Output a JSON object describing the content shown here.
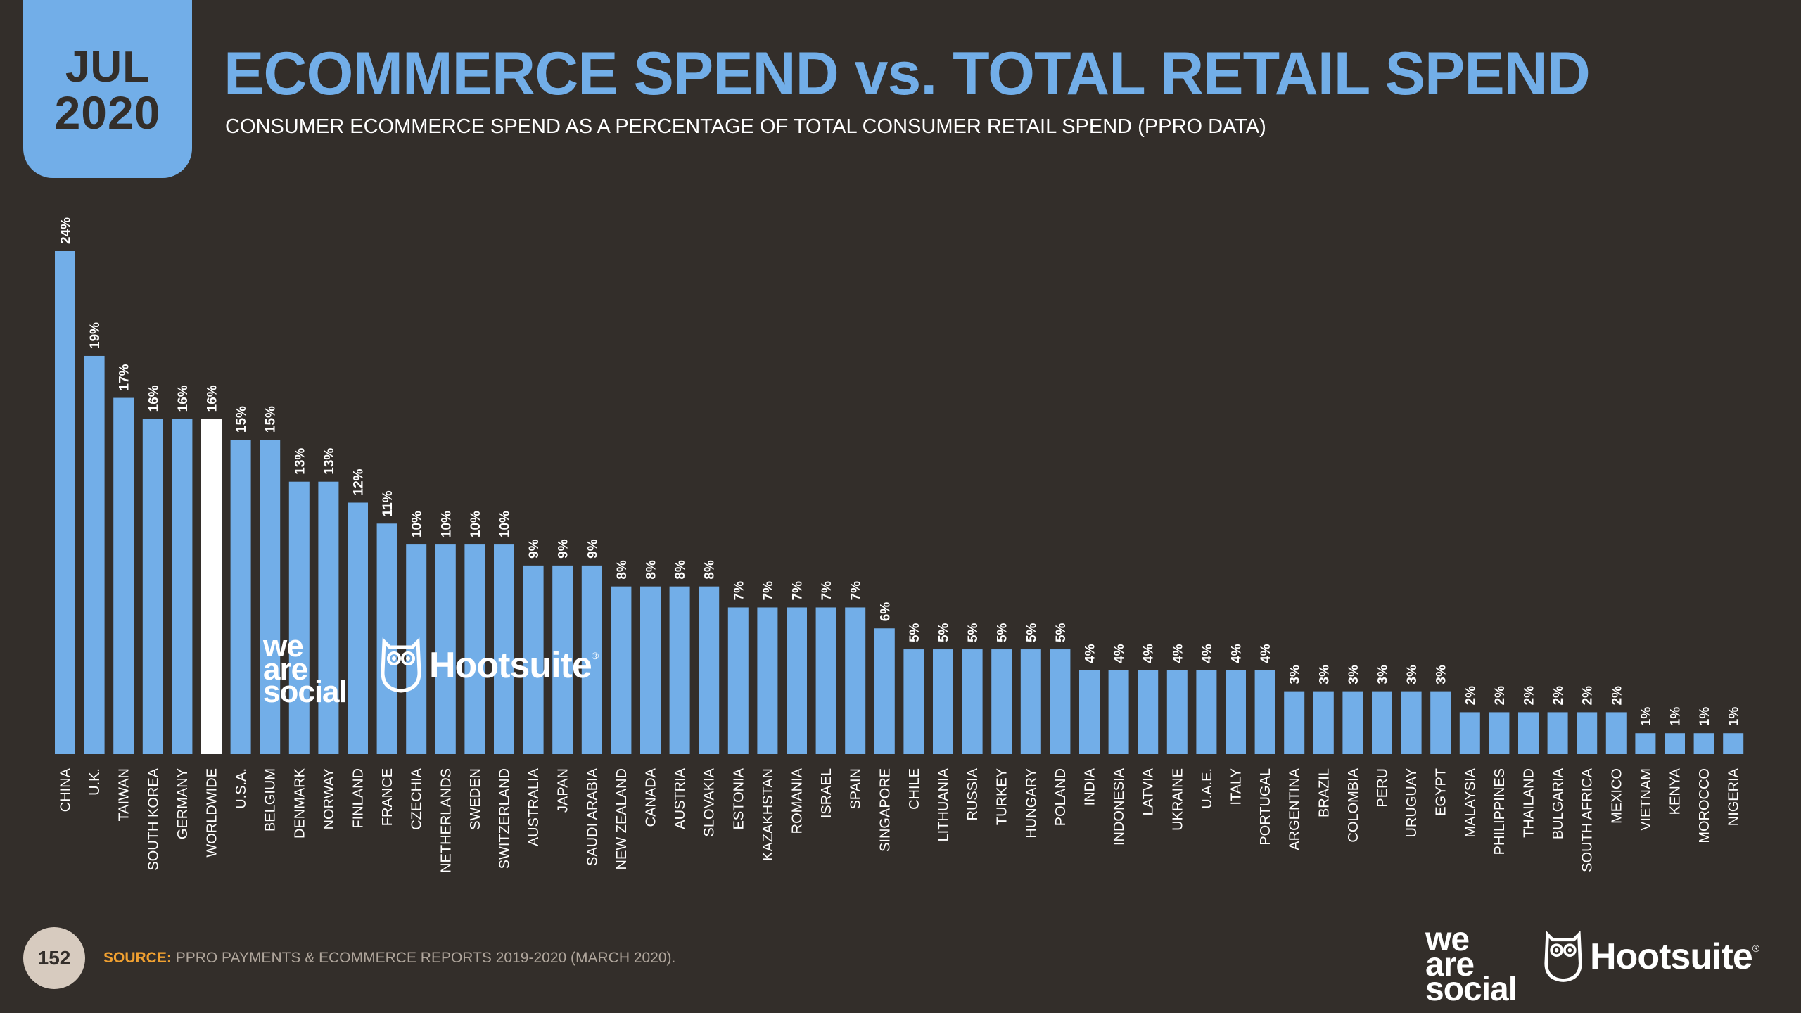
{
  "header": {
    "month": "JUL",
    "year": "2020",
    "title": "ECOMMERCE SPEND vs. TOTAL RETAIL SPEND",
    "subtitle": "CONSUMER ECOMMERCE SPEND AS A PERCENTAGE OF TOTAL CONSUMER RETAIL SPEND (PPRO DATA)"
  },
  "footer": {
    "page_number": "152",
    "source_label": "SOURCE:",
    "source_text": "PPRO PAYMENTS & ECOMMERCE REPORTS 2019-2020 (MARCH 2020)."
  },
  "logos": {
    "was_line1": "we",
    "was_line2": "are",
    "was_line3": "social",
    "hootsuite": "Hootsuite",
    "reg_mark": "®"
  },
  "colors": {
    "background": "#332e2a",
    "bar": "#72aee8",
    "highlight_bar": "#ffffff",
    "title": "#72aee8",
    "source_label": "#f0a030"
  },
  "chart_data": {
    "type": "bar",
    "categories": [
      "CHINA",
      "U.K.",
      "TAIWAN",
      "SOUTH KOREA",
      "GERMANY",
      "WORLDWIDE",
      "U.S.A.",
      "BELGIUM",
      "DENMARK",
      "NORWAY",
      "FINLAND",
      "FRANCE",
      "CZECHIA",
      "NETHERLANDS",
      "SWEDEN",
      "SWITZERLAND",
      "AUSTRALIA",
      "JAPAN",
      "SAUDI ARABIA",
      "NEW ZEALAND",
      "CANADA",
      "AUSTRIA",
      "SLOVAKIA",
      "ESTONIA",
      "KAZAKHSTAN",
      "ROMANIA",
      "ISRAEL",
      "SPAIN",
      "SINGAPORE",
      "CHILE",
      "LITHUANIA",
      "RUSSIA",
      "TURKEY",
      "HUNGARY",
      "POLAND",
      "INDIA",
      "INDONESIA",
      "LATVIA",
      "UKRAINE",
      "U.A.E.",
      "ITALY",
      "PORTUGAL",
      "ARGENTINA",
      "BRAZIL",
      "COLOMBIA",
      "PERU",
      "URUGUAY",
      "EGYPT",
      "MALAYSIA",
      "PHILIPPINES",
      "THAILAND",
      "BULGARIA",
      "SOUTH AFRICA",
      "MEXICO",
      "VIETNAM",
      "KENYA",
      "MOROCCO",
      "NIGERIA"
    ],
    "values": [
      24,
      19,
      17,
      16,
      16,
      16,
      15,
      15,
      13,
      13,
      12,
      11,
      10,
      10,
      10,
      10,
      9,
      9,
      9,
      8,
      8,
      8,
      8,
      7,
      7,
      7,
      7,
      7,
      6,
      5,
      5,
      5,
      5,
      5,
      5,
      4,
      4,
      4,
      4,
      4,
      4,
      4,
      3,
      3,
      3,
      3,
      3,
      3,
      2,
      2,
      2,
      2,
      2,
      2,
      1,
      1,
      1,
      1
    ],
    "labels": [
      "24%",
      "19%",
      "17%",
      "16%",
      "16%",
      "16%",
      "15%",
      "15%",
      "13%",
      "13%",
      "12%",
      "11%",
      "10%",
      "10%",
      "10%",
      "10%",
      "9%",
      "9%",
      "9%",
      "8%",
      "8%",
      "8%",
      "8%",
      "7%",
      "7%",
      "7%",
      "7%",
      "7%",
      "6%",
      "5%",
      "5%",
      "5%",
      "5%",
      "5%",
      "5%",
      "4%",
      "4%",
      "4%",
      "4%",
      "4%",
      "4%",
      "4%",
      "3%",
      "3%",
      "3%",
      "3%",
      "3%",
      "3%",
      "2%",
      "2%",
      "2%",
      "2%",
      "2%",
      "2%",
      "1%",
      "1%",
      "1%",
      "1%"
    ],
    "highlight": "WORLDWIDE",
    "unit": "%",
    "ylim": [
      0,
      24
    ],
    "grid": false,
    "legend": "none"
  }
}
